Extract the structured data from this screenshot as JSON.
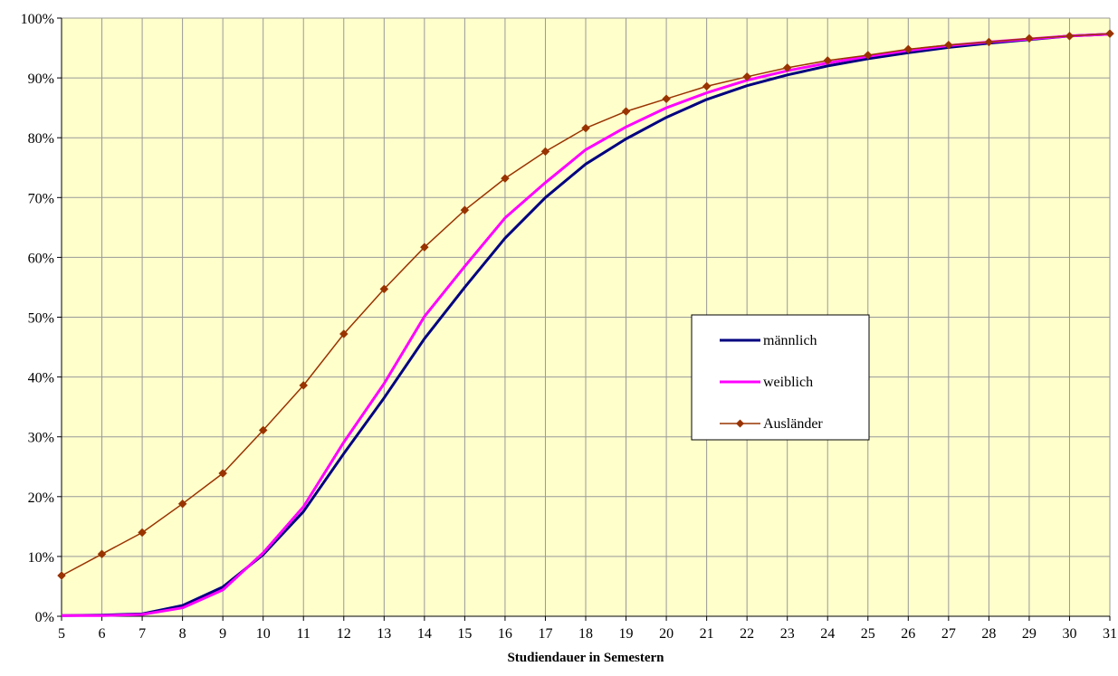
{
  "chart_data": {
    "type": "line",
    "xlabel": "Studiendauer in Semestern",
    "ylabel": "",
    "x": [
      5,
      6,
      7,
      8,
      9,
      10,
      11,
      12,
      13,
      14,
      15,
      16,
      17,
      18,
      19,
      20,
      21,
      22,
      23,
      24,
      25,
      26,
      27,
      28,
      29,
      30,
      31
    ],
    "xlim": [
      5,
      31
    ],
    "ylim": [
      0,
      100
    ],
    "y_ticks": [
      0,
      10,
      20,
      30,
      40,
      50,
      60,
      70,
      80,
      90,
      100
    ],
    "y_tick_labels": [
      "0%",
      "10%",
      "20%",
      "30%",
      "40%",
      "50%",
      "60%",
      "70%",
      "80%",
      "90%",
      "100%"
    ],
    "x_tick_labels": [
      "5",
      "6",
      "7",
      "8",
      "9",
      "10",
      "11",
      "12",
      "13",
      "14",
      "15",
      "16",
      "17",
      "18",
      "19",
      "20",
      "21",
      "22",
      "23",
      "24",
      "25",
      "26",
      "27",
      "28",
      "29",
      "30",
      "31"
    ],
    "grid": true,
    "plot_background": "#FFFFCC",
    "grid_color": "#999999",
    "legend_position": "center-right",
    "series": [
      {
        "name": "männlich",
        "color": "#000080",
        "marker": "none",
        "values": [
          0.1,
          0.2,
          0.4,
          1.8,
          4.9,
          10.3,
          17.5,
          27.2,
          36.5,
          46.4,
          55.0,
          63.2,
          70.0,
          75.6,
          79.8,
          83.4,
          86.4,
          88.7,
          90.5,
          92.0,
          93.2,
          94.2,
          95.1,
          95.8,
          96.4,
          97.0,
          97.3
        ]
      },
      {
        "name": "weiblich",
        "color": "#FF00FF",
        "marker": "none",
        "values": [
          0.1,
          0.1,
          0.3,
          1.4,
          4.4,
          10.6,
          18.3,
          29.1,
          38.9,
          50.1,
          58.5,
          66.6,
          72.5,
          78.0,
          81.8,
          85.0,
          87.5,
          89.6,
          91.2,
          92.5,
          93.6,
          94.6,
          95.4,
          96.0,
          96.5,
          97.0,
          97.3
        ]
      },
      {
        "name": "Ausländer",
        "color": "#993300",
        "marker": "diamond",
        "values": [
          6.8,
          10.4,
          14.0,
          18.8,
          23.9,
          31.1,
          38.6,
          47.2,
          54.7,
          61.7,
          67.9,
          73.2,
          77.7,
          81.6,
          84.4,
          86.5,
          88.6,
          90.2,
          91.7,
          92.9,
          93.8,
          94.8,
          95.5,
          96.0,
          96.6,
          97.0,
          97.4
        ]
      }
    ]
  }
}
